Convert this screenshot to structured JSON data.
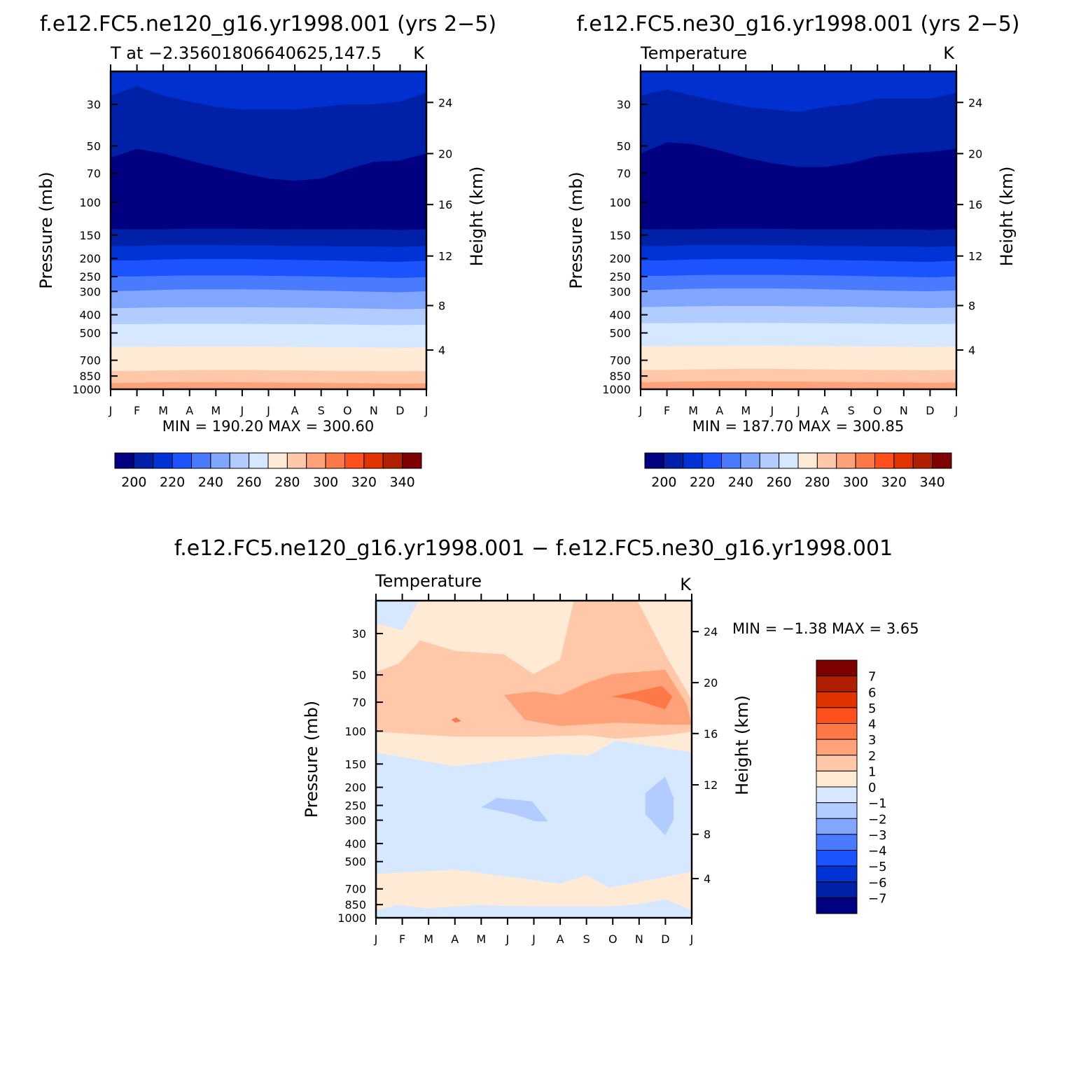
{
  "panels": [
    {
      "id": "ne120",
      "title": "f.e12.FC5.ne120_g16.yr1998.001 (yrs 2−5)",
      "left_string": "T at −2.35601806640625,147.5",
      "right_string": "K",
      "stats": "MIN = 190.20 MAX = 300.60"
    },
    {
      "id": "ne30",
      "title": "f.e12.FC5.ne30_g16.yr1998.001 (yrs 2−5)",
      "left_string": "Temperature",
      "right_string": "K",
      "stats": "MIN = 187.70 MAX = 300.85"
    },
    {
      "id": "diff",
      "title": "f.e12.FC5.ne120_g16.yr1998.001 − f.e12.FC5.ne30_g16.yr1998.001",
      "left_string": "Temperature",
      "right_string": "K",
      "stats": "MIN =   −1.38  MAX =     3.65"
    }
  ],
  "axes": {
    "ylabel_left": "Pressure (mb)",
    "ylabel_right": "Height (km)",
    "pressure_ticks": [
      "30",
      "50",
      "70",
      "100",
      "150",
      "200",
      "250",
      "300",
      "400",
      "500",
      "700",
      "850",
      "1000"
    ],
    "height_ticks": [
      "24",
      "20",
      "16",
      "12",
      "8",
      "4"
    ],
    "month_ticks": [
      "J",
      "F",
      "M",
      "A",
      "M",
      "J",
      "J",
      "A",
      "S",
      "O",
      "N",
      "D",
      "J"
    ]
  },
  "colorbars": {
    "abs_labels": [
      "200",
      "220",
      "240",
      "260",
      "280",
      "300",
      "320",
      "340"
    ],
    "abs_colors": [
      "#000080",
      "#0020a8",
      "#0033d6",
      "#1a53ff",
      "#4a7bff",
      "#80a6ff",
      "#b3ccff",
      "#d6e8ff",
      "#ffead6",
      "#ffc8a8",
      "#ffa27a",
      "#ff7847",
      "#ff4f1a",
      "#e03300",
      "#b02000",
      "#7f0000"
    ],
    "diff_labels": [
      "7",
      "6",
      "5",
      "4",
      "3",
      "2",
      "1",
      "0",
      "−1",
      "−2",
      "−3",
      "−4",
      "−5",
      "−6",
      "−7"
    ],
    "diff_colors": [
      "#7f0000",
      "#b02000",
      "#e03300",
      "#ff4f1a",
      "#ff7847",
      "#ffa27a",
      "#ffc8a8",
      "#ffead6",
      "#d6e8ff",
      "#b3ccff",
      "#80a6ff",
      "#4a7bff",
      "#1a53ff",
      "#0033d6",
      "#0020a8",
      "#000080"
    ]
  },
  "chart_data": [
    {
      "type": "heatmap",
      "name": "ne120 absolute temperature (filled contours)",
      "x_categories": [
        "J",
        "F",
        "M",
        "A",
        "M",
        "J",
        "J",
        "A",
        "S",
        "O",
        "N",
        "D",
        "J"
      ],
      "y_axis": "pressure_mb_log",
      "ylim": [
        1000,
        20
      ],
      "units": "K",
      "levels": [
        200,
        210,
        220,
        230,
        240,
        250,
        260,
        270,
        280,
        290,
        300
      ],
      "min": 190.2,
      "max": 300.6,
      "contour_pressures": {
        "210": [
          27,
          24,
          27,
          29,
          31,
          32,
          32,
          32,
          31,
          30,
          30,
          29,
          26
        ],
        "200": [
          58,
          52,
          55,
          60,
          65,
          70,
          75,
          77,
          75,
          67,
          61,
          60,
          55
        ],
        "210_lower": [
          140,
          140,
          140,
          139,
          139,
          139,
          140,
          140,
          140,
          140,
          140,
          141,
          140
        ],
        "220": [
          172,
          172,
          170,
          170,
          170,
          171,
          171,
          172,
          172,
          173,
          173,
          174,
          172
        ],
        "230": [
          205,
          205,
          203,
          202,
          202,
          202,
          203,
          204,
          205,
          206,
          208,
          209,
          206
        ],
        "240": [
          250,
          250,
          248,
          247,
          247,
          247,
          248,
          249,
          250,
          252,
          253,
          255,
          252
        ],
        "250": [
          300,
          298,
          295,
          293,
          293,
          293,
          294,
          296,
          298,
          300,
          302,
          304,
          300
        ],
        "260": [
          370,
          368,
          366,
          365,
          365,
          365,
          366,
          367,
          368,
          370,
          372,
          374,
          372
        ],
        "270": [
          450,
          450,
          448,
          448,
          448,
          448,
          449,
          450,
          451,
          452,
          454,
          455,
          453
        ],
        "280": [
          595,
          595,
          593,
          592,
          592,
          592,
          593,
          595,
          597,
          598,
          600,
          602,
          598
        ],
        "290": [
          800,
          800,
          795,
          792,
          790,
          790,
          793,
          795,
          798,
          800,
          802,
          803,
          800
        ],
        "300": [
          930,
          925,
          920,
          918,
          918,
          920,
          922,
          925,
          928,
          930,
          932,
          935,
          932
        ]
      }
    },
    {
      "type": "heatmap",
      "name": "ne30 absolute temperature (filled contours)",
      "x_categories": [
        "J",
        "F",
        "M",
        "A",
        "M",
        "J",
        "J",
        "A",
        "S",
        "O",
        "N",
        "D",
        "J"
      ],
      "y_axis": "pressure_mb_log",
      "ylim": [
        1000,
        20
      ],
      "units": "K",
      "levels": [
        200,
        210,
        220,
        230,
        240,
        250,
        260,
        270,
        280,
        290,
        300
      ],
      "min": 187.7,
      "max": 300.85,
      "contour_pressures": {
        "210": [
          27,
          25,
          27,
          29,
          31,
          32,
          33,
          31,
          30,
          28,
          28,
          28,
          26
        ],
        "200": [
          55,
          48,
          49,
          53,
          58,
          62,
          65,
          65,
          62,
          57,
          55,
          54,
          52
        ],
        "210_lower": [
          140,
          140,
          140,
          139,
          139,
          139,
          140,
          140,
          140,
          140,
          140,
          141,
          140
        ],
        "220": [
          172,
          172,
          170,
          170,
          170,
          171,
          171,
          172,
          172,
          173,
          173,
          174,
          172
        ],
        "230": [
          205,
          205,
          203,
          202,
          202,
          202,
          203,
          204,
          205,
          206,
          208,
          209,
          206
        ],
        "240": [
          248,
          248,
          246,
          245,
          245,
          245,
          246,
          247,
          248,
          250,
          251,
          253,
          250
        ],
        "250": [
          296,
          294,
          291,
          290,
          290,
          290,
          291,
          293,
          295,
          297,
          299,
          300,
          297
        ],
        "260": [
          365,
          363,
          361,
          360,
          360,
          360,
          361,
          362,
          363,
          365,
          367,
          369,
          367
        ],
        "270": [
          445,
          445,
          443,
          443,
          443,
          443,
          444,
          445,
          446,
          447,
          449,
          450,
          448
        ],
        "280": [
          590,
          590,
          588,
          587,
          586,
          586,
          587,
          589,
          591,
          592,
          594,
          596,
          592
        ],
        "290": [
          790,
          790,
          785,
          782,
          780,
          780,
          783,
          785,
          788,
          790,
          792,
          793,
          790
        ],
        "300": [
          920,
          915,
          910,
          908,
          908,
          910,
          912,
          915,
          918,
          920,
          922,
          925,
          922
        ]
      }
    },
    {
      "type": "heatmap",
      "name": "ne120 minus ne30 temperature difference (filled contours)",
      "x_categories": [
        "J",
        "F",
        "M",
        "A",
        "M",
        "J",
        "J",
        "A",
        "S",
        "O",
        "N",
        "D",
        "J"
      ],
      "y_axis": "pressure_mb_log",
      "ylim": [
        1000,
        20
      ],
      "units": "K",
      "levels": [
        -7,
        -6,
        -5,
        -4,
        -3,
        -2,
        -1,
        0,
        1,
        2,
        3,
        4,
        5,
        6,
        7
      ],
      "min": -1.38,
      "max": 3.65,
      "regions": [
        {
          "value_range": [
            0,
            1
          ],
          "description": "background warm band upper levels and near surface"
        },
        {
          "value_range": [
            1,
            2
          ],
          "description": "upper troposphere / lower stratosphere warm anomaly"
        },
        {
          "value_range": [
            2,
            3
          ],
          "description": "warm core June–December near 70–100 mb"
        },
        {
          "value_range": [
            3,
            4
          ],
          "description": "max near December ~75 mb"
        },
        {
          "value_range": [
            -1,
            0
          ],
          "description": "middle troposphere cool band 150–600 mb"
        },
        {
          "value_range": [
            -2,
            -1
          ],
          "description": "cool pockets near June–July 280 mb and December 250–380 mb"
        }
      ]
    }
  ]
}
